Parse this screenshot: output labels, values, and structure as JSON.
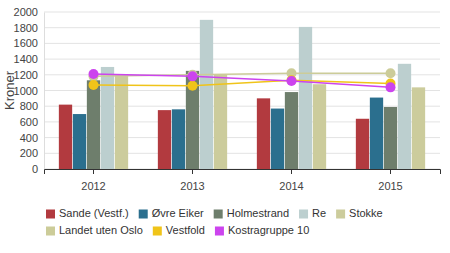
{
  "chart_data": {
    "type": "bar",
    "ylabel": "Kroner",
    "categories": [
      "2012",
      "2013",
      "2014",
      "2015"
    ],
    "series": [
      {
        "name": "Sande (Vestf.)",
        "type": "bar",
        "color": "#b23a3f",
        "values": [
          820,
          750,
          900,
          640
        ]
      },
      {
        "name": "Øvre Eiker",
        "type": "bar",
        "color": "#2b6f8e",
        "values": [
          700,
          760,
          770,
          910
        ]
      },
      {
        "name": "Holmestrand",
        "type": "bar",
        "color": "#6e7e6c",
        "values": [
          1130,
          1250,
          980,
          790
        ]
      },
      {
        "name": "Re",
        "type": "bar",
        "color": "#bccfcf",
        "values": [
          1300,
          1900,
          1810,
          1340
        ]
      },
      {
        "name": "Stokke",
        "type": "bar",
        "color": "#cccc9c",
        "values": [
          1210,
          1200,
          1080,
          1040
        ]
      },
      {
        "name": "Landet uten Oslo",
        "type": "line",
        "marker": "circle",
        "color": "#cccc99",
        "values": [
          1180,
          1200,
          1220,
          1220
        ]
      },
      {
        "name": "Vestfold",
        "type": "line",
        "marker": "circle",
        "color": "#f0c419",
        "values": [
          1070,
          1060,
          1130,
          1090
        ]
      },
      {
        "name": "Kostragruppe 10",
        "type": "line",
        "marker": "circle",
        "color": "#cc44ee",
        "values": [
          1210,
          1180,
          1120,
          1040
        ]
      }
    ],
    "ylim": [
      0,
      2000
    ],
    "yticks": [
      0,
      200,
      400,
      600,
      800,
      1000,
      1200,
      1400,
      1600,
      1800,
      2000
    ],
    "grid": true,
    "legend": "bottom"
  }
}
